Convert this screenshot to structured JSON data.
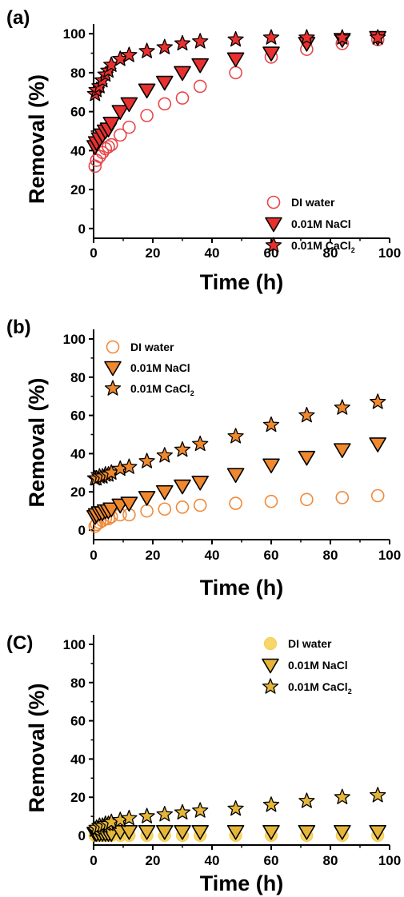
{
  "chart_data": [
    {
      "panel_label": "(a)",
      "type": "scatter",
      "xlabel": "Time (h)",
      "ylabel": "Removal (%)",
      "xlim": [
        0,
        100
      ],
      "ylim": [
        -5,
        105
      ],
      "xticks": [
        0,
        20,
        40,
        60,
        80,
        100
      ],
      "yticks": [
        0,
        20,
        40,
        60,
        80,
        100
      ],
      "legend_position": "bottom-right",
      "legend_labels": {
        "di": "DI water",
        "nacl": "0.01M NaCl",
        "cacl2": "0.01M CaCl",
        "cacl2_sub": "2"
      },
      "colors": {
        "di_edge": "#e8474a",
        "nacl_fill": "#e8312e",
        "cacl2_fill": "#e8312e"
      },
      "series": [
        {
          "key": "di",
          "marker": "circle",
          "x": [
            0.5,
            1,
            2,
            3,
            4,
            5,
            6,
            9,
            12,
            18,
            24,
            30,
            36,
            48,
            60,
            72,
            84,
            96
          ],
          "y": [
            32,
            35,
            37,
            39,
            41,
            42,
            43,
            48,
            52,
            58,
            64,
            67,
            73,
            80,
            88,
            92,
            95,
            97
          ]
        },
        {
          "key": "nacl",
          "marker": "triangle",
          "x": [
            0.5,
            1,
            2,
            3,
            4,
            5,
            6,
            9,
            12,
            18,
            24,
            30,
            36,
            48,
            60,
            72,
            84,
            96
          ],
          "y": [
            42,
            44,
            46,
            48,
            50,
            51,
            54,
            60,
            64,
            71,
            75,
            80,
            84,
            87,
            90,
            95,
            97,
            98
          ]
        },
        {
          "key": "cacl2",
          "marker": "star",
          "x": [
            0.5,
            1,
            2,
            3,
            4,
            5,
            6,
            9,
            12,
            18,
            24,
            30,
            36,
            48,
            60,
            72,
            84,
            96
          ],
          "y": [
            69,
            71,
            73,
            76,
            79,
            81,
            84,
            87,
            89,
            91,
            93,
            95,
            96,
            97,
            98,
            98,
            98,
            98
          ]
        }
      ]
    },
    {
      "panel_label": "(b)",
      "type": "scatter",
      "xlabel": "Time (h)",
      "ylabel": "Removal (%)",
      "xlim": [
        0,
        100
      ],
      "ylim": [
        -5,
        105
      ],
      "xticks": [
        0,
        20,
        40,
        60,
        80,
        100
      ],
      "yticks": [
        0,
        20,
        40,
        60,
        80,
        100
      ],
      "legend_position": "top-left",
      "legend_labels": {
        "di": "DI water",
        "nacl": "0.01M NaCl",
        "cacl2": "0.01M CaCl",
        "cacl2_sub": "2"
      },
      "colors": {
        "di_edge": "#f08a3a",
        "nacl_fill": "#f0882e",
        "cacl2_fill": "#f0882e"
      },
      "series": [
        {
          "key": "di",
          "marker": "circle",
          "x": [
            0.5,
            1,
            2,
            3,
            4,
            5,
            6,
            9,
            12,
            18,
            24,
            30,
            36,
            48,
            60,
            72,
            84,
            96
          ],
          "y": [
            2,
            3,
            4,
            5,
            6,
            6,
            7,
            8,
            8,
            10,
            11,
            12,
            13,
            14,
            15,
            16,
            17,
            18
          ]
        },
        {
          "key": "nacl",
          "marker": "triangle",
          "x": [
            0.5,
            1,
            2,
            3,
            4,
            5,
            6,
            9,
            12,
            18,
            24,
            30,
            36,
            48,
            60,
            72,
            84,
            96
          ],
          "y": [
            7,
            8,
            9,
            9,
            10,
            10,
            11,
            13,
            14,
            17,
            20,
            23,
            25,
            29,
            34,
            38,
            42,
            45
          ]
        },
        {
          "key": "cacl2",
          "marker": "star",
          "x": [
            0.5,
            1,
            2,
            3,
            4,
            5,
            6,
            9,
            12,
            18,
            24,
            30,
            36,
            48,
            60,
            72,
            84,
            96
          ],
          "y": [
            27,
            27,
            28,
            28,
            29,
            29,
            30,
            32,
            33,
            36,
            39,
            42,
            45,
            49,
            55,
            60,
            64,
            67
          ]
        }
      ]
    },
    {
      "panel_label": "(C)",
      "type": "scatter",
      "xlabel": "Time (h)",
      "ylabel": "Removal (%)",
      "xlim": [
        0,
        100
      ],
      "ylim": [
        -5,
        105
      ],
      "xticks": [
        0,
        20,
        40,
        60,
        80,
        100
      ],
      "yticks": [
        0,
        20,
        40,
        60,
        80,
        100
      ],
      "legend_position": "top-right",
      "legend_labels": {
        "di": "DI water",
        "nacl": "0.01M NaCl",
        "cacl2": "0.01M CaCl",
        "cacl2_sub": "2"
      },
      "colors": {
        "di_edge": "#f5c84a",
        "di_fill": "#f7d35a",
        "nacl_fill": "#e5b53a",
        "cacl2_fill": "#e5b53a"
      },
      "series": [
        {
          "key": "di",
          "marker": "circle-filled",
          "x": [
            0.5,
            1,
            2,
            3,
            4,
            5,
            6,
            9,
            12,
            18,
            24,
            30,
            36,
            48,
            60,
            72,
            84,
            96
          ],
          "y": [
            0,
            0,
            0,
            0,
            0,
            0,
            0,
            0,
            0,
            0,
            0,
            0,
            0,
            0,
            0,
            0,
            0,
            0
          ]
        },
        {
          "key": "nacl",
          "marker": "triangle",
          "x": [
            0.5,
            1,
            2,
            3,
            4,
            5,
            6,
            9,
            12,
            18,
            24,
            30,
            36,
            48,
            60,
            72,
            84,
            96
          ],
          "y": [
            1,
            1,
            1,
            1,
            1,
            1,
            1,
            2,
            2,
            2,
            2,
            2,
            2,
            2,
            2,
            2,
            2,
            2
          ]
        },
        {
          "key": "cacl2",
          "marker": "star",
          "x": [
            0.5,
            1,
            2,
            3,
            4,
            5,
            6,
            9,
            12,
            18,
            24,
            30,
            36,
            48,
            60,
            72,
            84,
            96
          ],
          "y": [
            3,
            4,
            5,
            5,
            6,
            6,
            7,
            8,
            9,
            10,
            11,
            12,
            13,
            14,
            16,
            18,
            20,
            21
          ]
        }
      ]
    }
  ]
}
